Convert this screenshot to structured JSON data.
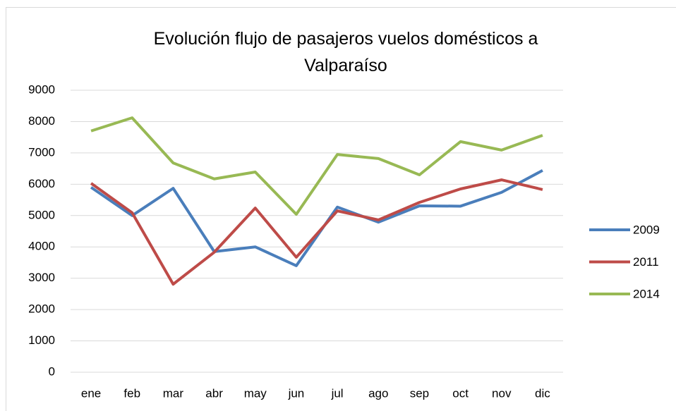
{
  "chart_data": {
    "type": "line",
    "title": "Evolución flujo de pasajeros vuelos domésticos a Valparaíso",
    "categories": [
      "ene",
      "feb",
      "mar",
      "abr",
      "may",
      "jun",
      "jul",
      "ago",
      "sep",
      "oct",
      "nov",
      "dic"
    ],
    "series": [
      {
        "name": "2009",
        "color": "#4a7ebb",
        "values": [
          5900,
          5000,
          5870,
          3850,
          4000,
          3400,
          5270,
          4790,
          5310,
          5300,
          5740,
          6440
        ]
      },
      {
        "name": "2011",
        "color": "#be4b48",
        "values": [
          6030,
          5090,
          2810,
          3830,
          5240,
          3670,
          5150,
          4860,
          5420,
          5850,
          6140,
          5830
        ]
      },
      {
        "name": "2014",
        "color": "#98b954",
        "values": [
          7700,
          8120,
          6680,
          6170,
          6390,
          5040,
          6950,
          6820,
          6300,
          7360,
          7090,
          7560
        ]
      }
    ],
    "ylim": [
      0,
      9000
    ],
    "yticks": [
      0,
      1000,
      2000,
      3000,
      4000,
      5000,
      6000,
      7000,
      8000,
      9000
    ],
    "grid": true,
    "legend": "right"
  }
}
